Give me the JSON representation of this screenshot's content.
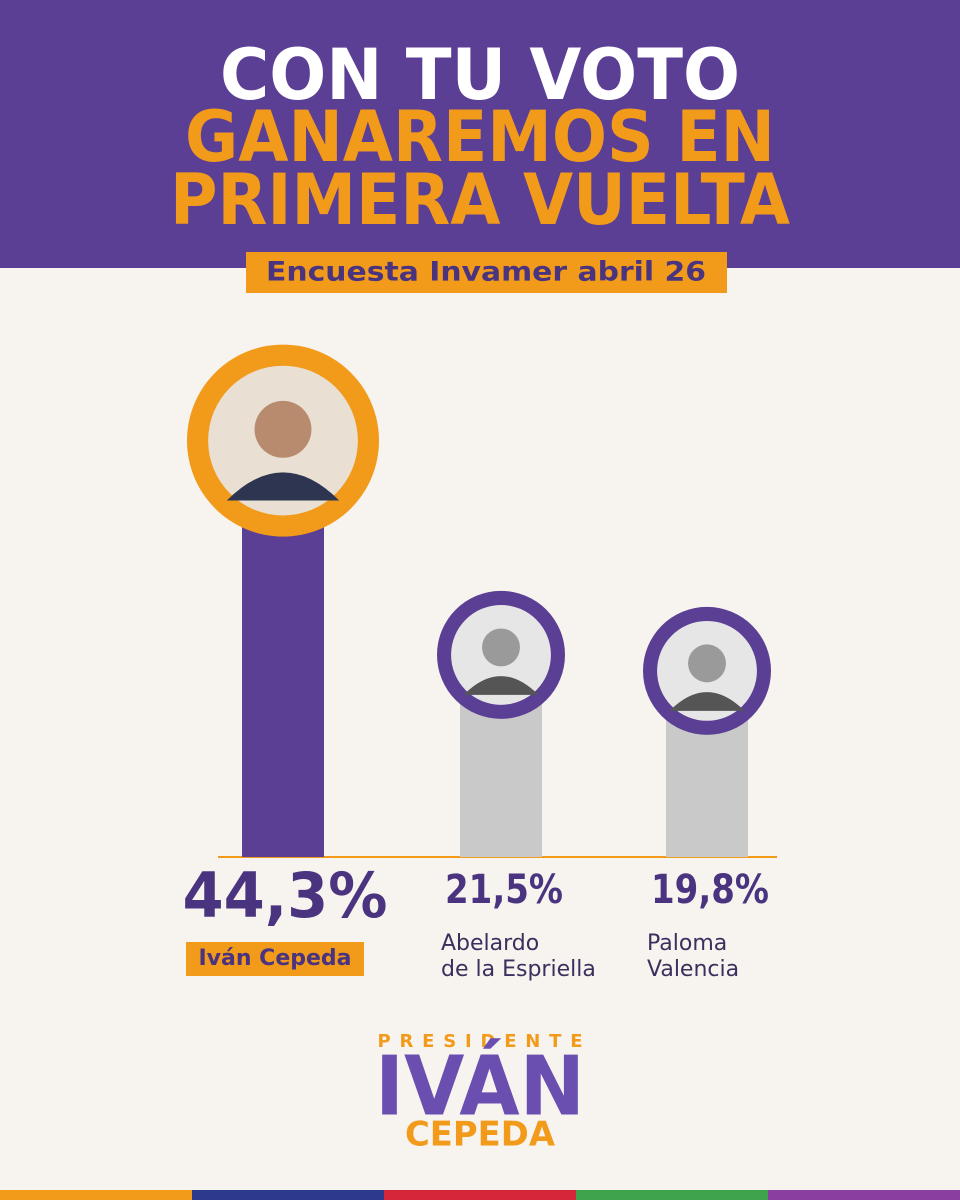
{
  "chart_data": {
    "type": "bar",
    "title": [
      "CON TU VOTO",
      "GANAREMOS EN",
      "PRIMERA VUELTA"
    ],
    "subtitle": "Encuesta Invamer abril 26",
    "categories": [
      "Iván Cepeda",
      "Abelardo\nde la Espriella",
      "Paloma\nValencia"
    ],
    "values": [
      44.3,
      21.5,
      19.8
    ],
    "value_labels": [
      "44,3%",
      "21,5%",
      "19,8%"
    ],
    "colors": [
      "#5b3f94",
      "#c9c9c9",
      "#c9c9c9"
    ]
  },
  "footer": {
    "kicker": "PRESIDENTE",
    "name": "IVÁN",
    "surname": "CEPEDA"
  }
}
